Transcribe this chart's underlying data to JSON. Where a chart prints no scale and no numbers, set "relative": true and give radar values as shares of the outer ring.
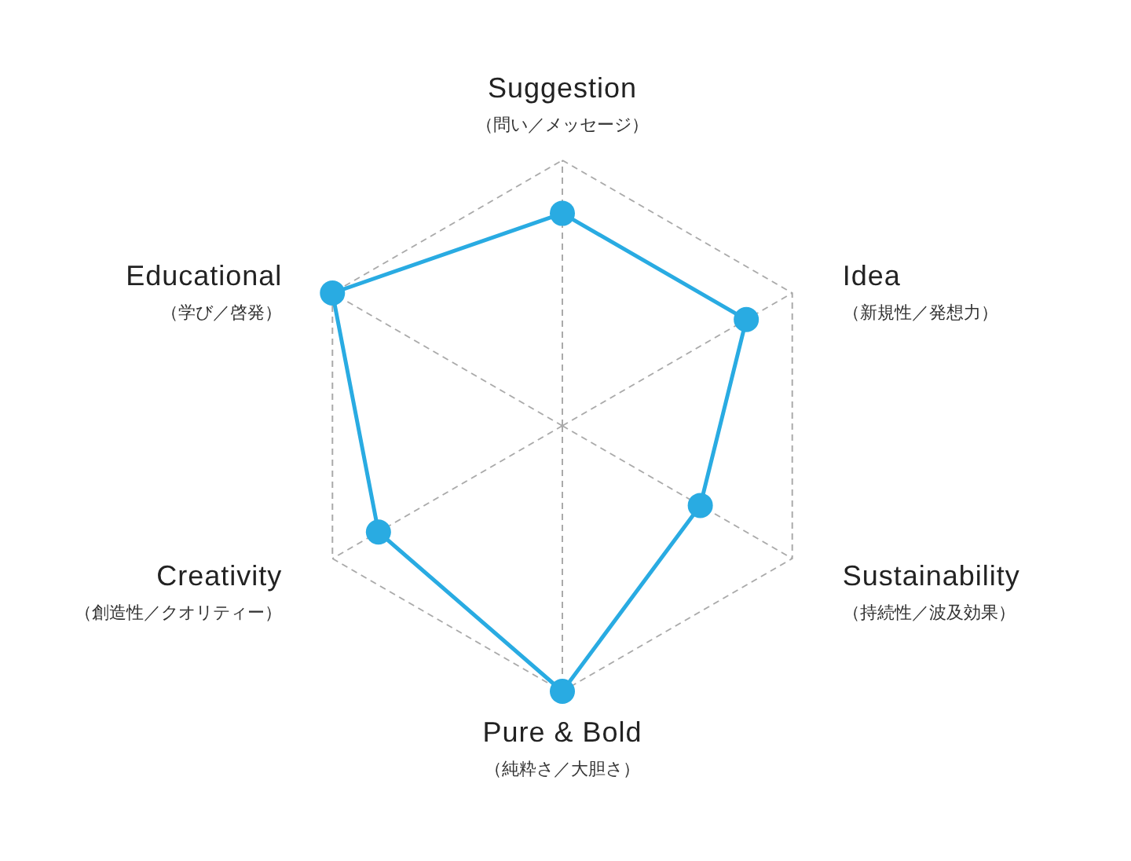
{
  "chart_data": {
    "type": "radar",
    "relative": true,
    "categories": [
      "Suggestion\n（問い／メッセージ）",
      "Idea\n（新規性／発想力）",
      "Sustainability\n（持続性／波及効果）",
      "Pure & Bold\n（純粋さ／大胆さ）",
      "Creativity\n（創造性／クオリティー）",
      "Educational\n（学び／啓発）"
    ],
    "series": [
      {
        "color": "#29abe2",
        "values": [
          0.8,
          0.8,
          0.6,
          1.0,
          0.8,
          1.0
        ]
      }
    ],
    "grid": true,
    "marker": "circle",
    "line_style": "solid"
  }
}
